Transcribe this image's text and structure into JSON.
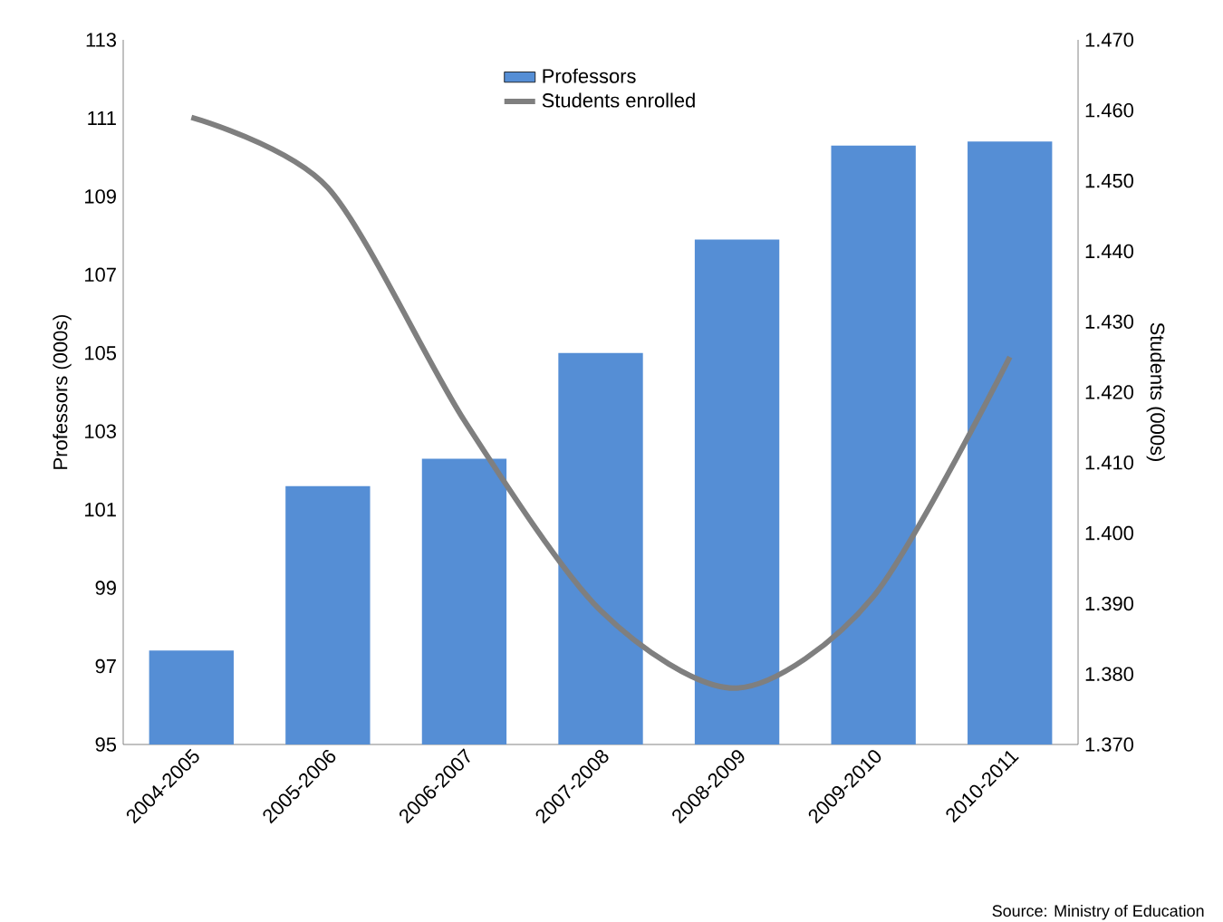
{
  "chart_data": {
    "type": "bar",
    "categories": [
      "2004-2005",
      "2005-2006",
      "2006-2007",
      "2007-2008",
      "2008-2009",
      "2009-2010",
      "2010-2011"
    ],
    "series": [
      {
        "name": "Professors",
        "color": "#558ed5",
        "values": [
          97.4,
          101.6,
          102.3,
          105.0,
          107.9,
          110.3,
          110.4
        ]
      },
      {
        "name": "Students enrolled",
        "type": "line",
        "axis": "y2",
        "color": "#7f7f7f",
        "values": [
          1.459,
          1.449,
          1.416,
          1.389,
          1.378,
          1.391,
          1.425
        ]
      }
    ],
    "ylabel": "Professors (000s)",
    "y2label": "Students (000s)",
    "ylim": [
      95,
      113
    ],
    "yticks": [
      95,
      97,
      99,
      101,
      103,
      105,
      107,
      109,
      111,
      113
    ],
    "y2lim": [
      1.37,
      1.47
    ],
    "y2ticks": [
      {
        "value": 1.37,
        "label": "1.370"
      },
      {
        "value": 1.38,
        "label": "1.380"
      },
      {
        "value": 1.39,
        "label": "1.390"
      },
      {
        "value": 1.4,
        "label": "1.400"
      },
      {
        "value": 1.41,
        "label": "1.410"
      },
      {
        "value": 1.42,
        "label": "1.420"
      },
      {
        "value": 1.43,
        "label": "1.430"
      },
      {
        "value": 1.44,
        "label": "1.440"
      },
      {
        "value": 1.45,
        "label": "1.450"
      },
      {
        "value": 1.46,
        "label": "1.460"
      },
      {
        "value": 1.47,
        "label": "1.470"
      }
    ],
    "legend": "top",
    "annotations": [
      "Source: Ministry of Education"
    ]
  }
}
